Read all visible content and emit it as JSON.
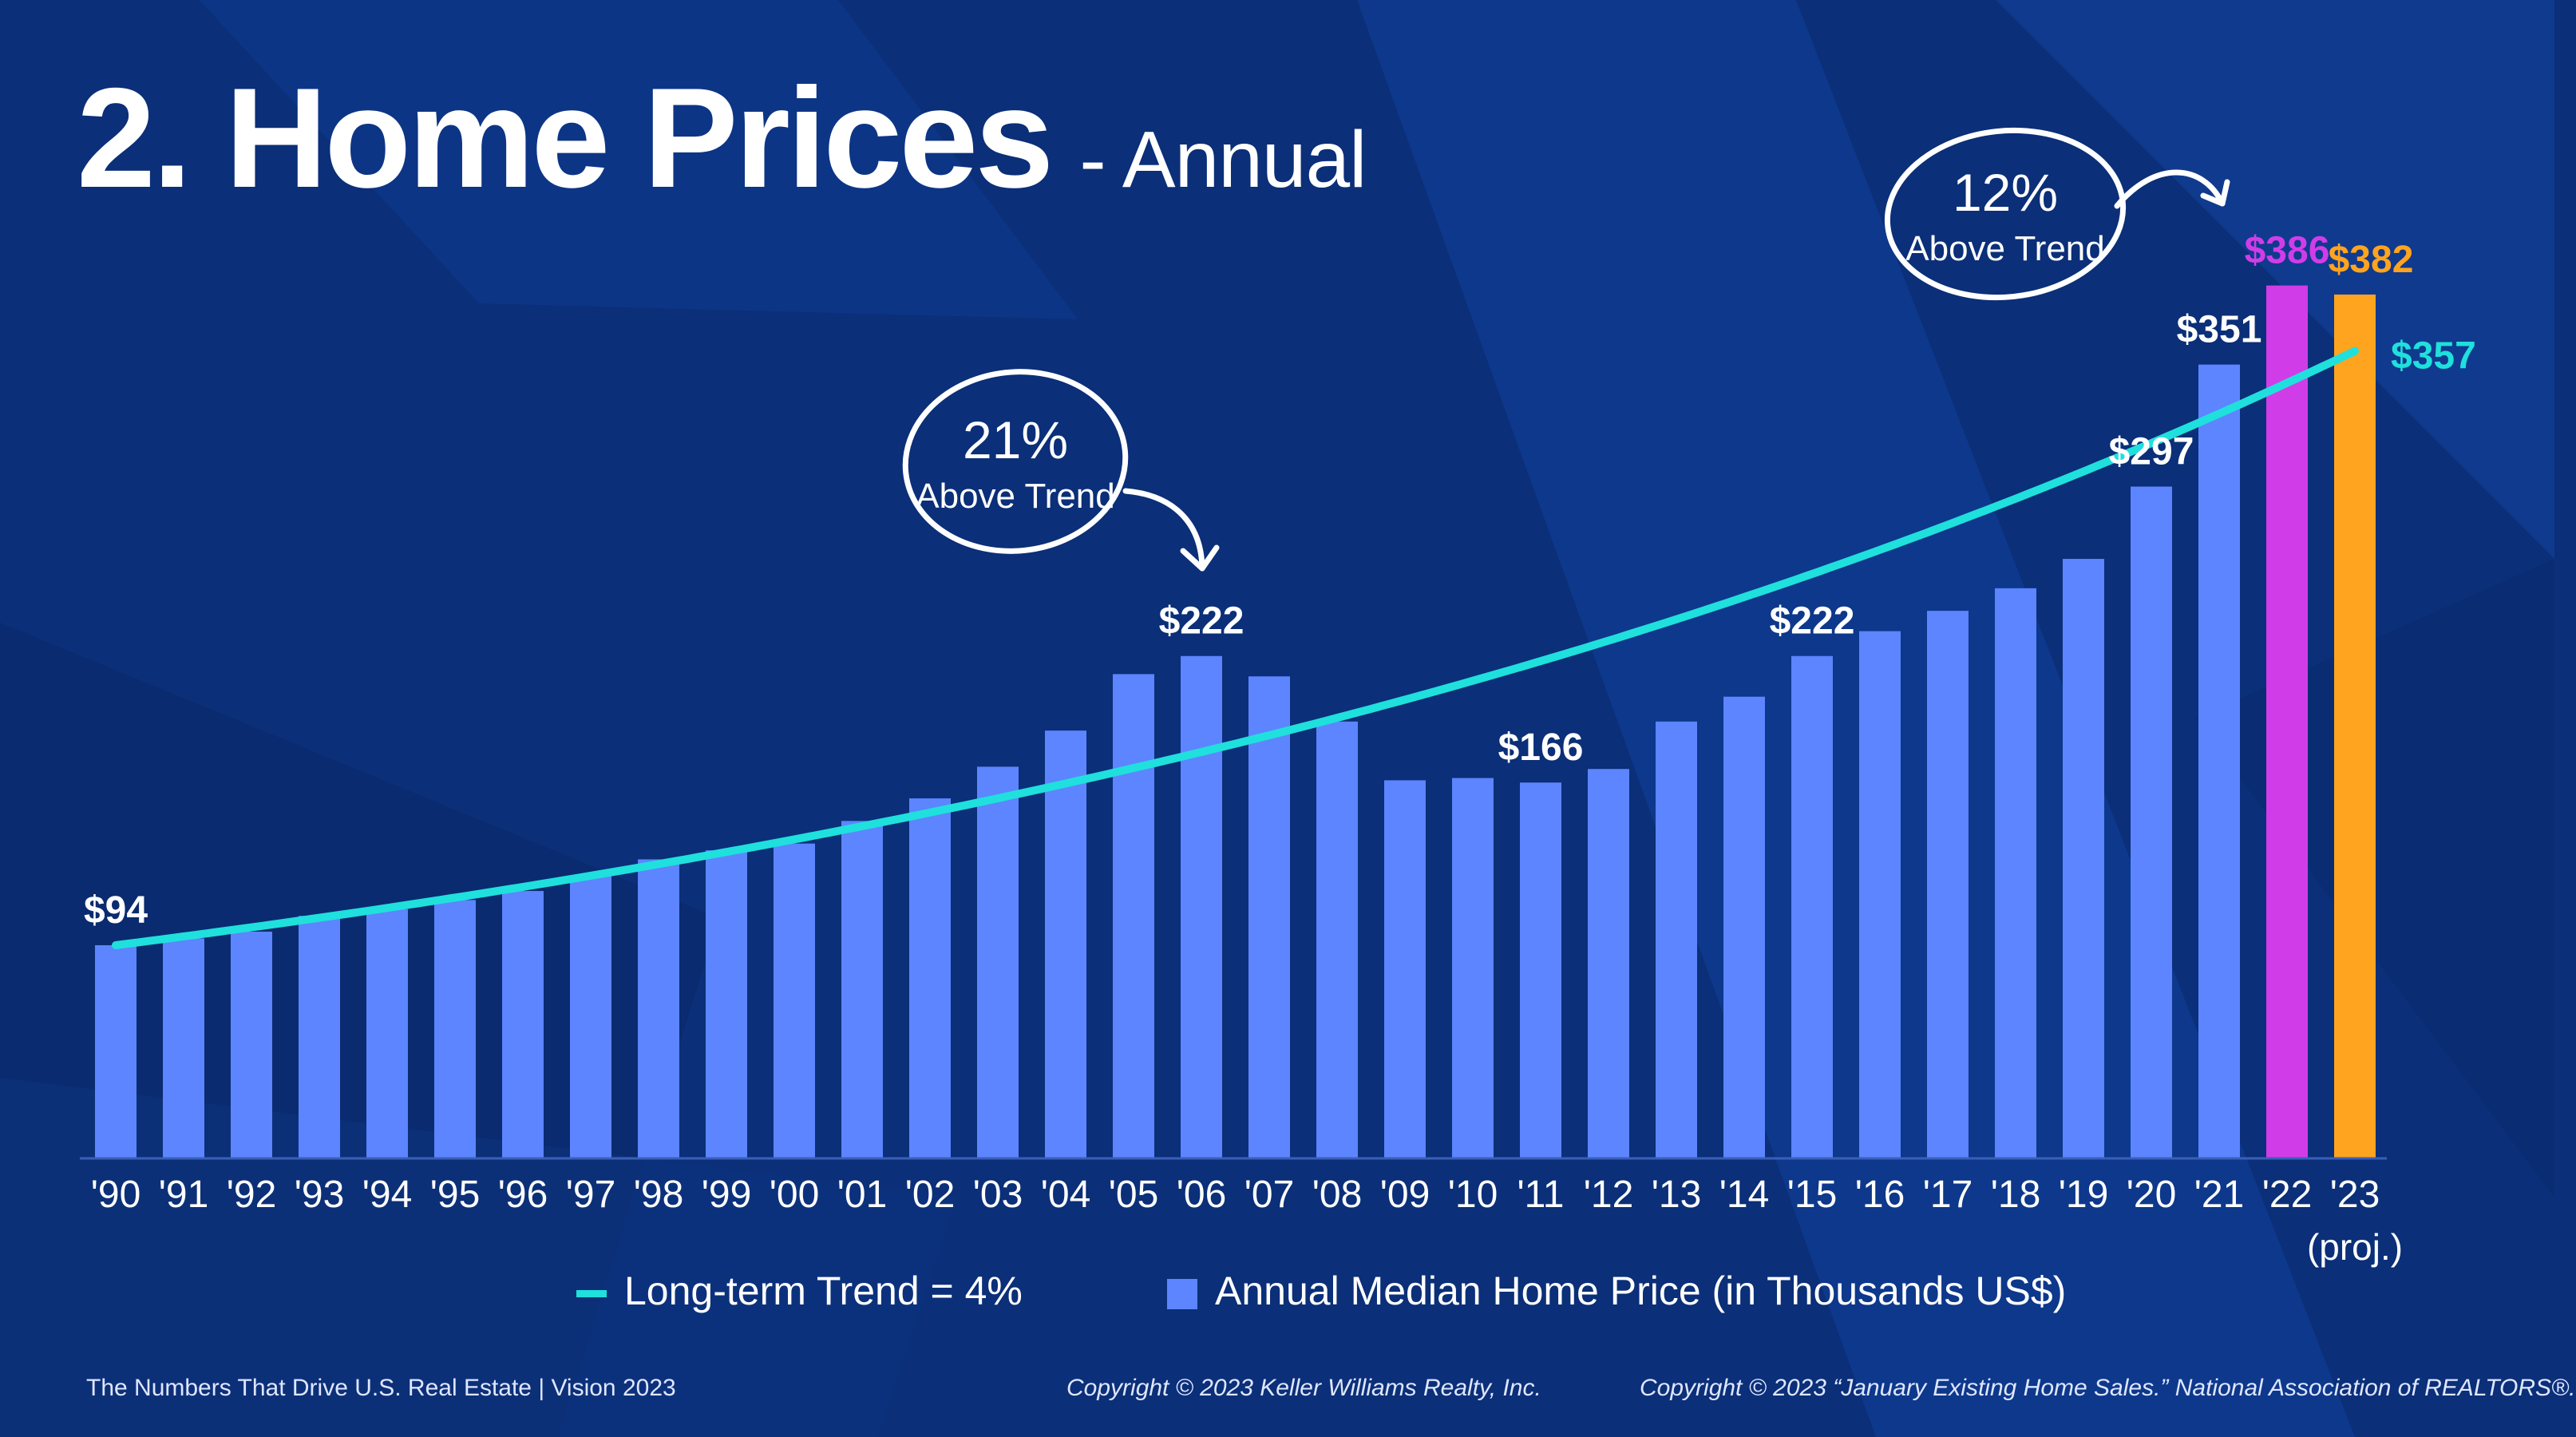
{
  "title": {
    "main": "2. Home Prices",
    "sub": "- Annual"
  },
  "chart_data": {
    "type": "bar",
    "title": "2. Home Prices - Annual",
    "categories": [
      "'90",
      "'91",
      "'92",
      "'93",
      "'94",
      "'95",
      "'96",
      "'97",
      "'98",
      "'99",
      "'00",
      "'01",
      "'02",
      "'03",
      "'04",
      "'05",
      "'06",
      "'07",
      "'08",
      "'09",
      "'10",
      "'11",
      "'12",
      "'13",
      "'14",
      "'15",
      "'16",
      "'17",
      "'18",
      "'19",
      "'20",
      "'21",
      "'22",
      "'23"
    ],
    "category_sublabels": {
      "'23": "(proj.)"
    },
    "series": [
      {
        "name": "Annual Median Home Price (in Thousands US$)",
        "type": "bar",
        "values": [
          94,
          97,
          100,
          107,
          110,
          114,
          118,
          125,
          132,
          136,
          139,
          149,
          159,
          173,
          189,
          214,
          222,
          213,
          193,
          167,
          168,
          166,
          172,
          193,
          204,
          222,
          233,
          242,
          252,
          265,
          297,
          351,
          386,
          382
        ],
        "colors": {
          "default": "#5c85ff",
          "'22": "#d03de8",
          "'23": "#ffa41f"
        }
      },
      {
        "name": "Long-term Trend = 4%",
        "type": "line",
        "color": "#1fe0dc",
        "start_value": 94,
        "end_value": 357,
        "growth_rate": 0.04
      }
    ],
    "data_labels": [
      {
        "category": "'90",
        "text": "$94",
        "color": "#ffffff"
      },
      {
        "category": "'06",
        "text": "$222",
        "color": "#ffffff"
      },
      {
        "category": "'11",
        "text": "$166",
        "color": "#ffffff"
      },
      {
        "category": "'15",
        "text": "$222",
        "color": "#ffffff"
      },
      {
        "category": "'20",
        "text": "$297",
        "color": "#ffffff"
      },
      {
        "category": "'21",
        "text": "$351",
        "color": "#ffffff"
      },
      {
        "category": "'22",
        "text": "$386",
        "color": "#d03de8"
      },
      {
        "category": "'23",
        "text": "$382",
        "color": "#ffa41f"
      },
      {
        "category": "'23",
        "text": "$357",
        "color": "#1fe0dc",
        "series": "trend"
      }
    ],
    "annotations": [
      {
        "pct": "21%",
        "text": "Above Trend",
        "points_to": "'06"
      },
      {
        "pct": "12%",
        "text": "Above Trend",
        "points_to": "'22"
      }
    ],
    "ylim": [
      0,
      400
    ],
    "xlabel": "",
    "ylabel": "",
    "grid": false
  },
  "legend": {
    "trend_label": "Long-term Trend = 4%",
    "bar_label": "Annual Median Home Price (in Thousands US$)"
  },
  "footer": {
    "left": "The Numbers That Drive U.S. Real Estate  |  Vision 2023",
    "center": "Copyright © 2023 Keller Williams Realty, Inc.",
    "right": "Copyright © 2023 “January Existing Home Sales.” National Association of REALTORS®."
  },
  "colors": {
    "background": "#0b2f78",
    "bar": "#5c85ff",
    "bar_2022": "#d03de8",
    "bar_2023": "#ffa41f",
    "trend": "#1fe0dc",
    "text": "#ffffff"
  }
}
